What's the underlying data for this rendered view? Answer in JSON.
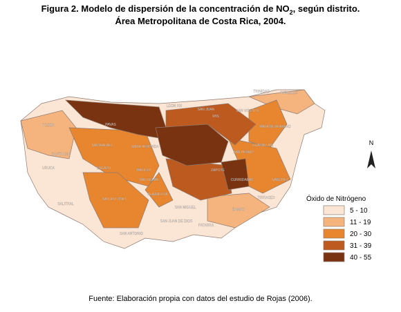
{
  "title": {
    "line1_before": "Figura 2. Modelo de dispersión de la concentración de NO",
    "line1_sub": "2",
    "line1_after": ", según distrito.",
    "line2": "Área Metropolitana de Costa Rica, 2004."
  },
  "north": "N",
  "legend": {
    "title": "Óxido de Nitrógeno",
    "items": [
      {
        "label": "5 - 10",
        "color": "#fbe6d6"
      },
      {
        "label": "11 - 19",
        "color": "#f5b47e"
      },
      {
        "label": "20 - 30",
        "color": "#e8862f"
      },
      {
        "label": "31 - 39",
        "color": "#bd5a1f"
      },
      {
        "label": "40 - 55",
        "color": "#7a3310"
      }
    ]
  },
  "districts": [
    "TRINIDAD",
    "PATALILLO",
    "LEON XIII",
    "SAN JUAN",
    "SAN VICENTE",
    "IPIS",
    "POZOS",
    "PAVAS",
    "MATA DE PLATANO",
    "SANTA ANA",
    "URUCA",
    "SAN RAFAEL",
    "MATA REDONDA",
    "SAN PEDRO",
    "GUADALUPE",
    "ESCAZU",
    "HATILLO",
    "SAN FELIPE",
    "ZAPOTE",
    "CURRIDABAT",
    "SANCHEZ",
    "ALAJUELITA",
    "TIRRASES",
    "SALITRAL",
    "SAN ANTONIO",
    "DAMAS",
    "SAN MIGUEL",
    "PATARRA",
    "SAN ANTONIO",
    "SAN JUAN DE DIOS"
  ],
  "source": "Fuente: Elaboración propia con datos del estudio de Rojas (2006)."
}
